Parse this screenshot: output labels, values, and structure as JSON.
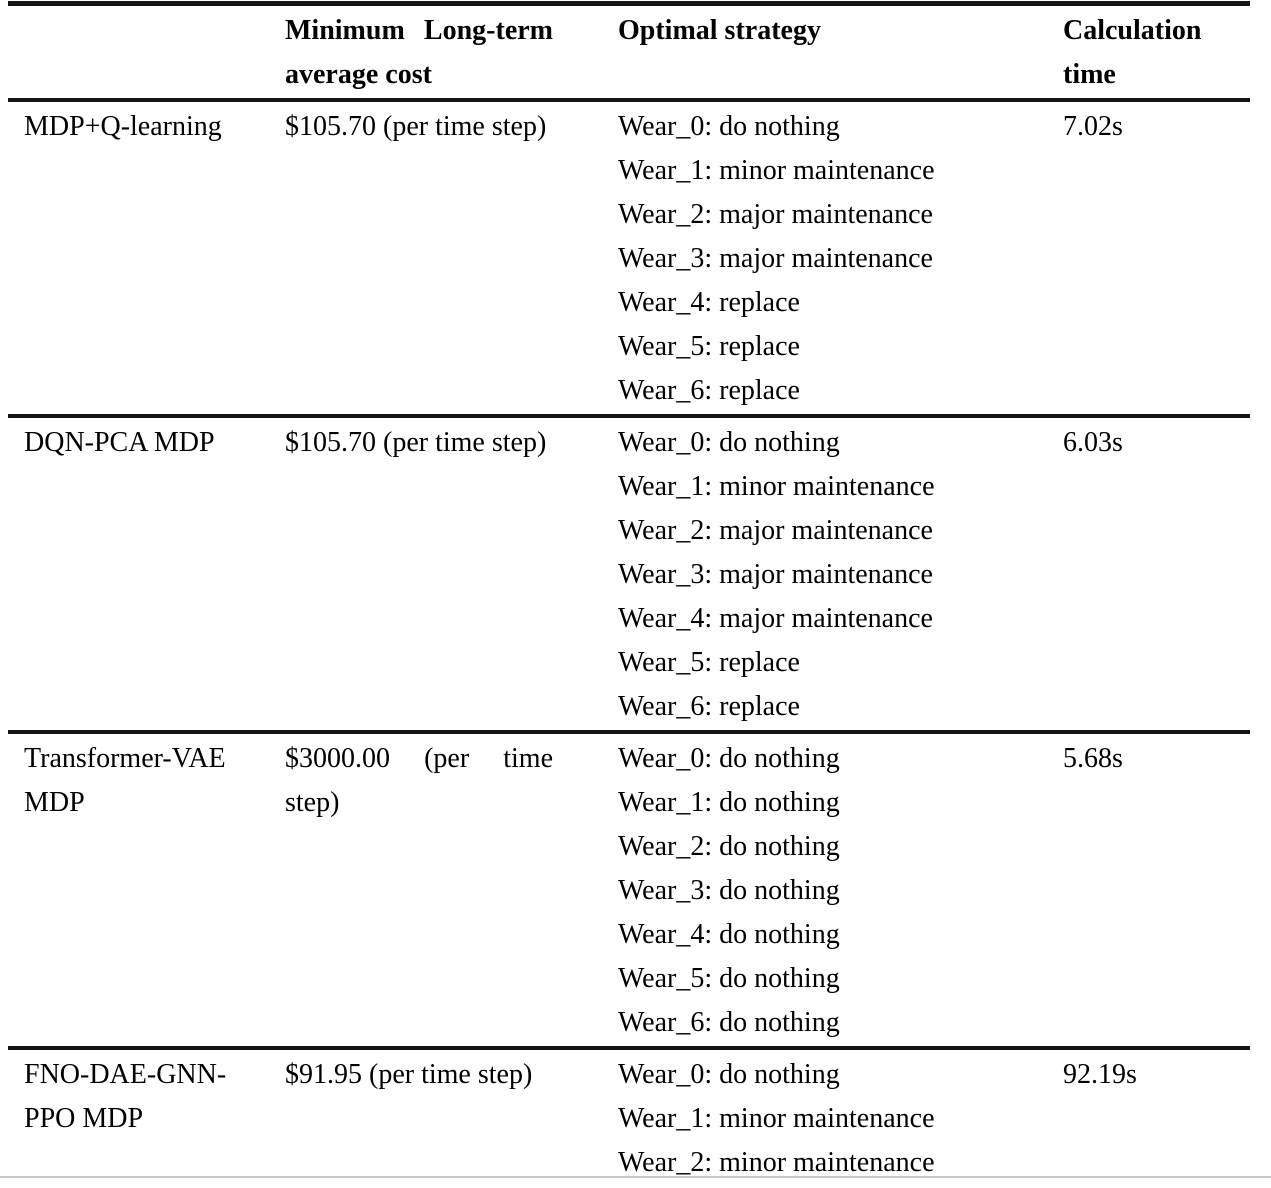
{
  "table": {
    "header": {
      "method": "",
      "cost": "Minimum Long-term average cost",
      "strategy": "Optimal strategy",
      "time": "Calculation time"
    },
    "rows": [
      {
        "method": "MDP+Q-learning",
        "cost": "$105.70 (per time step)",
        "strategy": [
          "Wear_0: do nothing",
          "Wear_1: minor maintenance",
          "Wear_2: major maintenance",
          "Wear_3: major maintenance",
          "Wear_4: replace",
          "Wear_5: replace",
          "Wear_6: replace"
        ],
        "time": "7.02s"
      },
      {
        "method": "DQN-PCA MDP",
        "cost": "$105.70 (per time step)",
        "strategy": [
          "Wear_0: do nothing",
          "Wear_1: minor maintenance",
          "Wear_2: major maintenance",
          "Wear_3: major maintenance",
          "Wear_4: major maintenance",
          "Wear_5: replace",
          "Wear_6: replace"
        ],
        "time": "6.03s"
      },
      {
        "method": "Transformer-VAE MDP",
        "cost": "$3000.00 (per time step)",
        "strategy": [
          "Wear_0: do nothing",
          "Wear_1: do nothing",
          "Wear_2: do nothing",
          "Wear_3: do nothing",
          "Wear_4: do nothing",
          "Wear_5: do nothing",
          "Wear_6: do nothing"
        ],
        "time": "5.68s"
      },
      {
        "method": "FNO-DAE-GNN-PPO MDP",
        "cost": "$91.95 (per time step)",
        "strategy": [
          "Wear_0: do nothing",
          "Wear_1: minor maintenance",
          "Wear_2: minor maintenance"
        ],
        "time": "92.19s"
      }
    ]
  }
}
